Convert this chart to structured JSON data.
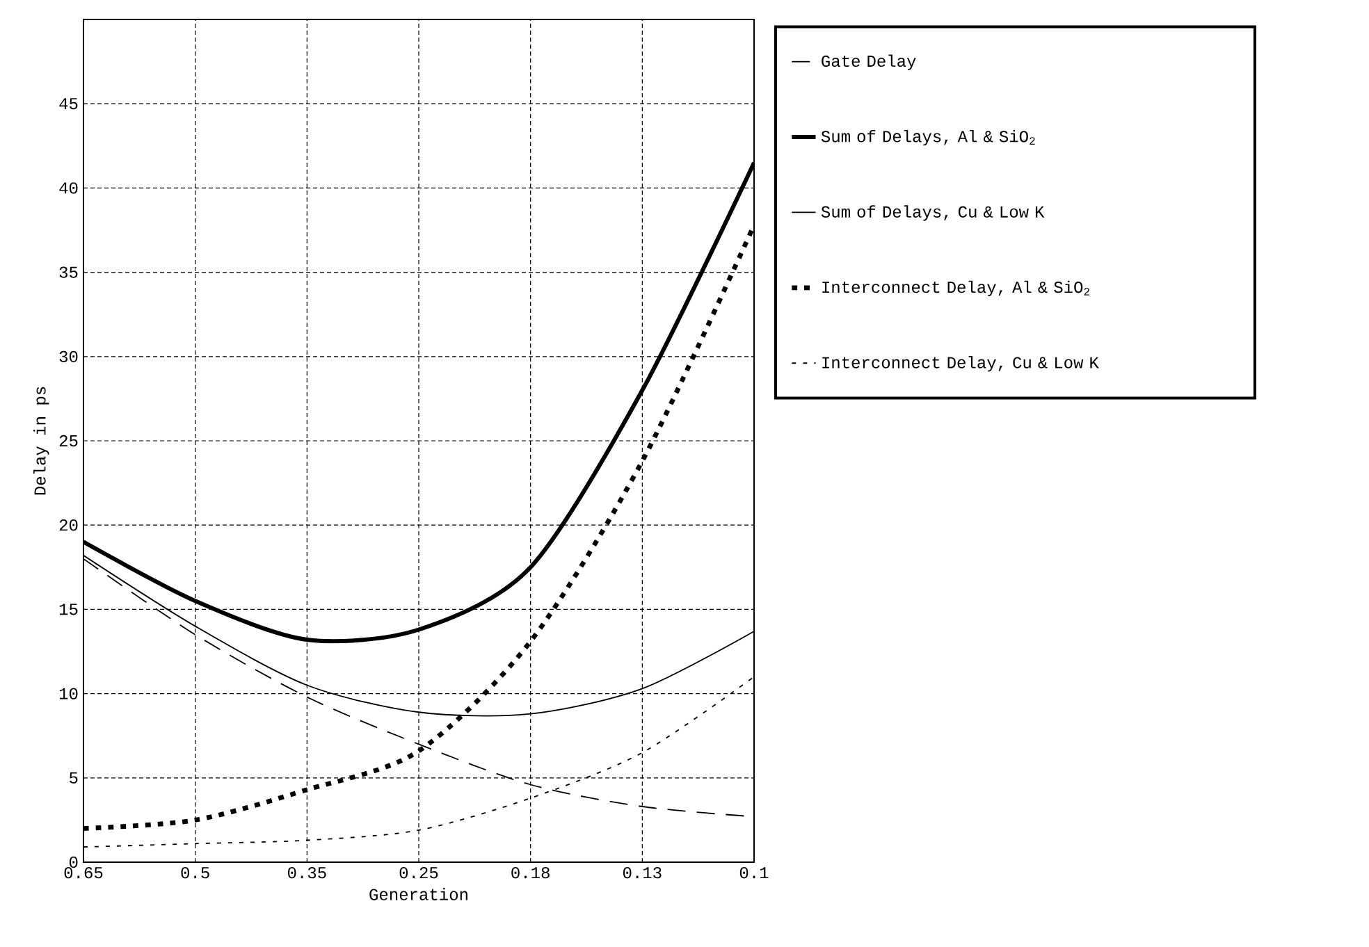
{
  "chart_data": {
    "type": "line",
    "xlabel": "Generation",
    "ylabel": "Delay in ps",
    "categories": [
      "0.65",
      "0.5",
      "0.35",
      "0.25",
      "0.18",
      "0.13",
      "0.1"
    ],
    "ylim": [
      0,
      50
    ],
    "yticks": [
      0,
      5,
      10,
      15,
      20,
      25,
      30,
      35,
      40,
      45
    ],
    "grid": true,
    "legend": "right",
    "series": [
      {
        "name": "Gate Delay",
        "color": "#000000",
        "line_style": "dashed",
        "values": [
          18,
          13.5,
          9.8,
          7,
          4.6,
          3.3,
          2.7
        ]
      },
      {
        "name": "Sum of Delays, Al & SiO$_{2}$",
        "color": "#000000",
        "line_style": "solid",
        "values": [
          19,
          15.5,
          13.2,
          13.8,
          17.5,
          28,
          41.5
        ]
      },
      {
        "name": "Sum of Delays, Cu & Low K",
        "color": "#000000",
        "line_style": "solid",
        "values": [
          18.2,
          14,
          10.5,
          8.9,
          8.8,
          10.3,
          13.7
        ]
      },
      {
        "name": "Interconnect Delay, Al & SiO$_{2}$",
        "color": "#000000",
        "line_style": "dotted",
        "values": [
          2,
          2.5,
          4.3,
          6.6,
          13.1,
          23.8,
          37.8
        ]
      },
      {
        "name": "Interconnect Delay, Cu & Low K",
        "color": "#000000",
        "line_style": "dotted",
        "values": [
          0.9,
          1.1,
          1.3,
          1.9,
          3.8,
          6.5,
          11
        ]
      }
    ]
  }
}
